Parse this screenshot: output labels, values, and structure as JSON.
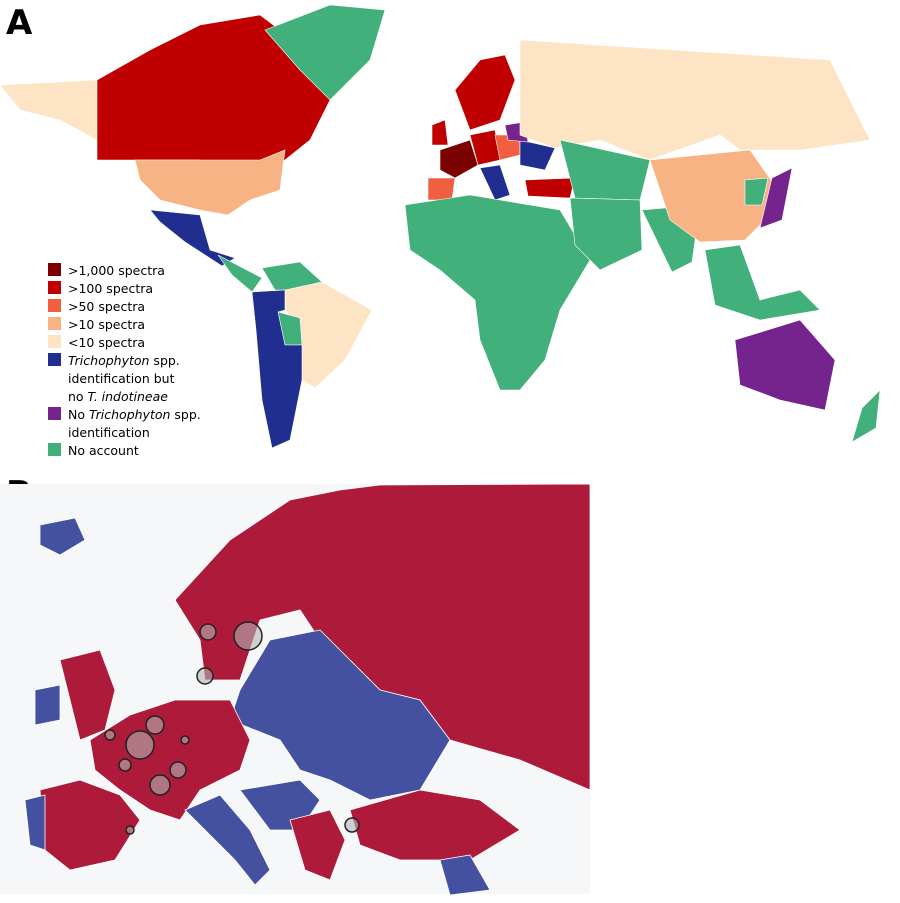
{
  "panels": [
    {
      "label": "A",
      "legend": [
        {
          "color": "#7b0000",
          "lines": [
            [
              {
                "text": ">1,000 spectra"
              }
            ]
          ]
        },
        {
          "color": "#c00000",
          "lines": [
            [
              {
                "text": ">100 spectra"
              }
            ]
          ]
        },
        {
          "color": "#f06040",
          "lines": [
            [
              {
                "text": ">50 spectra"
              }
            ]
          ]
        },
        {
          "color": "#f7b383",
          "lines": [
            [
              {
                "text": ">10 spectra"
              }
            ]
          ]
        },
        {
          "color": "#fce4c4",
          "lines": [
            [
              {
                "text": "<10 spectra"
              }
            ]
          ]
        },
        {
          "color": "#1f2e8f",
          "lines": [
            [
              {
                "text": "Trichophyton",
                "italic": true
              },
              {
                "text": " spp."
              }
            ],
            [
              {
                "text": "identification but"
              }
            ],
            [
              {
                "text": "no "
              },
              {
                "text": "T. indotineae",
                "italic": true
              }
            ]
          ]
        },
        {
          "color": "#74248c",
          "lines": [
            [
              {
                "text": "No "
              },
              {
                "text": "Trichophyton",
                "italic": true
              },
              {
                "text": " spp."
              }
            ],
            [
              {
                "text": "identification"
              }
            ]
          ]
        },
        {
          "color": "#41b07a",
          "lines": [
            [
              {
                "text": "No account"
              }
            ]
          ]
        }
      ]
    },
    {
      "label": "B"
    }
  ]
}
